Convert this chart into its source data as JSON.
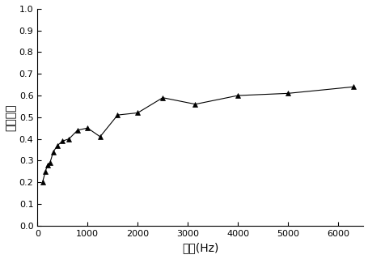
{
  "x": [
    100,
    160,
    200,
    250,
    315,
    400,
    500,
    630,
    800,
    1000,
    1250,
    1600,
    2000,
    2500,
    3150,
    4000,
    5000,
    6300
  ],
  "y": [
    0.2,
    0.25,
    0.28,
    0.29,
    0.34,
    0.37,
    0.39,
    0.4,
    0.44,
    0.45,
    0.41,
    0.51,
    0.52,
    0.59,
    0.56,
    0.6,
    0.61,
    0.64
  ],
  "xlabel": "频率(Hz)",
  "ylabel": "吸声系数",
  "xlim": [
    0,
    6500
  ],
  "ylim": [
    0.0,
    1.0
  ],
  "xticks": [
    0,
    1000,
    2000,
    3000,
    4000,
    5000,
    6000
  ],
  "yticks": [
    0.0,
    0.1,
    0.2,
    0.3,
    0.4,
    0.5,
    0.6,
    0.7,
    0.8,
    0.9,
    1.0
  ],
  "line_color": "#000000",
  "marker": "^",
  "marker_size": 5,
  "marker_facecolor": "#000000",
  "line_style": "-",
  "line_width": 0.8,
  "bg_color": "#ffffff",
  "tick_fontsize": 8,
  "label_fontsize": 10
}
